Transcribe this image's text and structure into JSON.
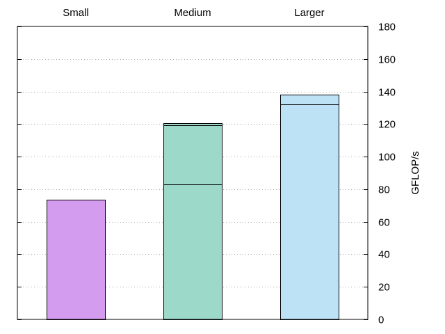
{
  "chart_data": {
    "type": "bar",
    "categories": [
      "Small",
      "Medium",
      "Larger"
    ],
    "values": [
      73.5,
      120.5,
      138
    ],
    "segment_marks": [
      [],
      [
        83,
        119.5
      ],
      [
        132
      ]
    ],
    "colors": [
      "#d49cee",
      "#9cd9c8",
      "#bde2f6"
    ],
    "title": "",
    "xlabel": "",
    "ylabel": "GFLOP/s",
    "ylim": [
      0,
      180
    ],
    "yticks": [
      0,
      20,
      40,
      60,
      80,
      100,
      120,
      140,
      160,
      180
    ],
    "y_axis_side": "right",
    "category_labels_side": "top",
    "grid": true
  }
}
